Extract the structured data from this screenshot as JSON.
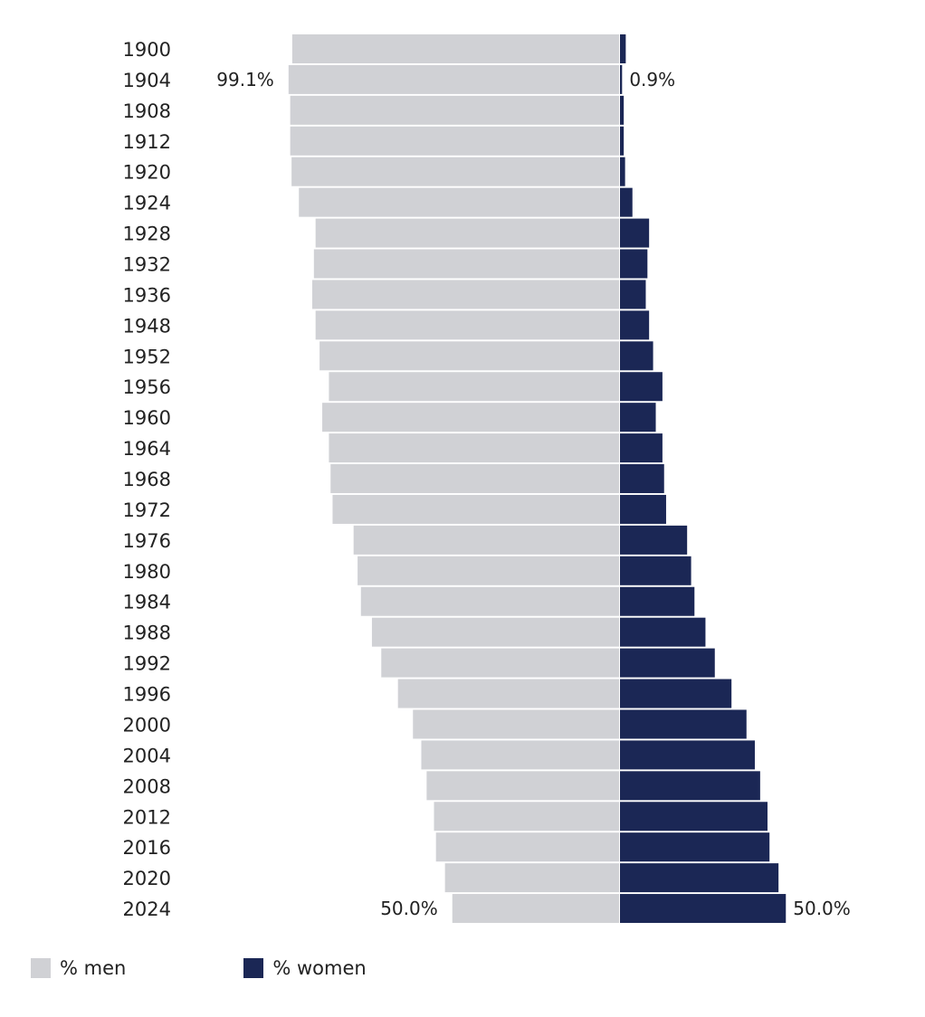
{
  "chart_data": {
    "type": "bar",
    "orientation": "horizontal-diverging",
    "categories": [
      "1900",
      "1904",
      "1908",
      "1912",
      "1920",
      "1924",
      "1928",
      "1932",
      "1936",
      "1948",
      "1952",
      "1956",
      "1960",
      "1964",
      "1968",
      "1972",
      "1976",
      "1980",
      "1984",
      "1988",
      "1992",
      "1996",
      "2000",
      "2004",
      "2008",
      "2012",
      "2016",
      "2020",
      "2024"
    ],
    "series": [
      {
        "name": "% men",
        "color": "#d0d1d5",
        "values": [
          98.0,
          99.1,
          98.6,
          98.6,
          98.2,
          96.0,
          91.0,
          91.5,
          92.0,
          91.0,
          89.8,
          87.0,
          89.0,
          87.0,
          86.5,
          85.9,
          79.6,
          78.4,
          77.4,
          74.1,
          71.3,
          66.3,
          61.8,
          59.3,
          57.7,
          55.5,
          54.9,
          52.2,
          50.0
        ]
      },
      {
        "name": "% women",
        "color": "#1b2755",
        "values": [
          2.0,
          0.9,
          1.4,
          1.4,
          1.8,
          4.0,
          9.0,
          8.5,
          8.0,
          9.0,
          10.2,
          13.0,
          11.0,
          13.0,
          13.5,
          14.1,
          20.4,
          21.6,
          22.6,
          25.9,
          28.7,
          33.7,
          38.2,
          40.7,
          42.3,
          44.5,
          45.1,
          47.8,
          50.0
        ]
      }
    ],
    "data_labels": [
      {
        "category": "1904",
        "series": "% men",
        "text": "99.1%"
      },
      {
        "category": "1904",
        "series": "% women",
        "text": "0.9%"
      },
      {
        "category": "2024",
        "series": "% men",
        "text": "50.0%"
      },
      {
        "category": "2024",
        "series": "% women",
        "text": "50.0%"
      }
    ],
    "xlim": [
      0,
      100
    ],
    "legend": [
      "% men",
      "% women"
    ],
    "legend_placement": "bottom-left",
    "grid": false,
    "title": "",
    "xlabel": "",
    "ylabel": ""
  }
}
